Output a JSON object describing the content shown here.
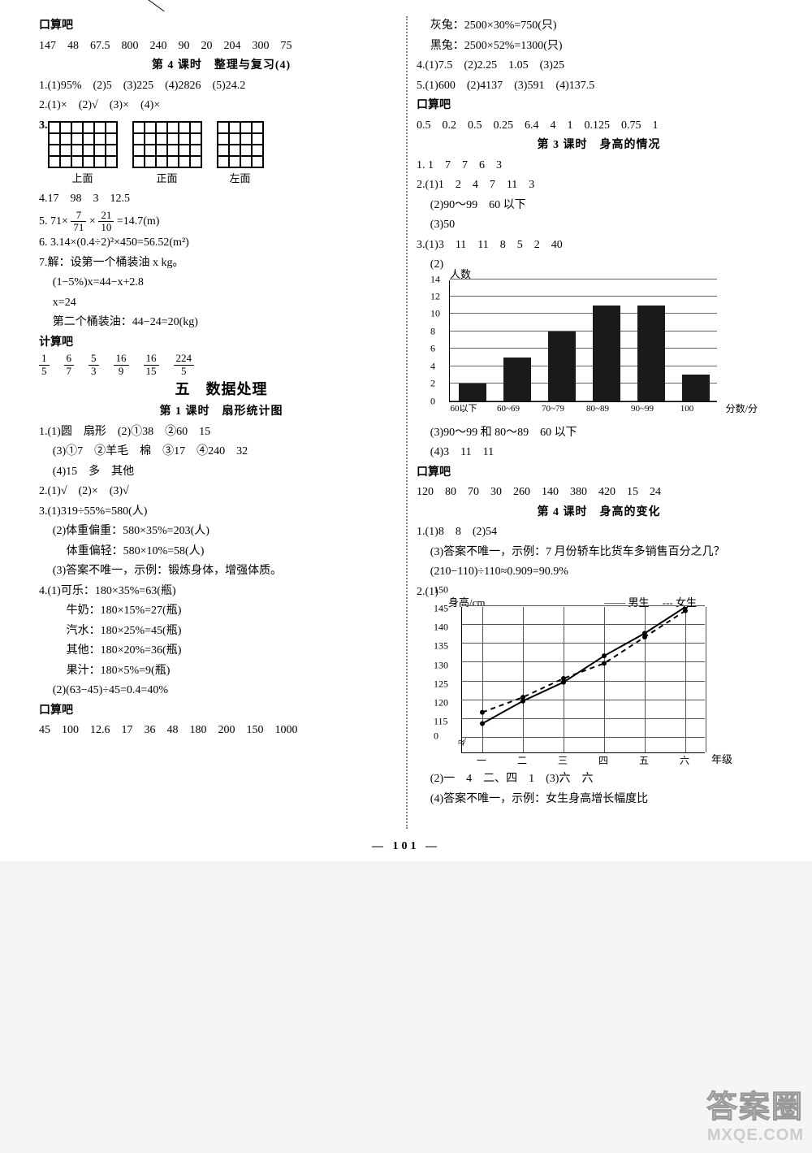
{
  "page_number": "101",
  "left": {
    "slash": true,
    "kousuan1_title": "口算吧",
    "kousuan1_values": "147　48　67.5　800　240　90　20　204　300　75",
    "l4_title": "第 4 课时　整理与复习(4)",
    "q1": "1.(1)95%　(2)5　(3)225　(4)2826　(5)24.2",
    "q2": "2.(1)×　(2)√　(3)×　(4)×",
    "q3_label": "3.",
    "views": [
      {
        "rows": 4,
        "cols": 6,
        "label": "上面"
      },
      {
        "rows": 4,
        "cols": 6,
        "label": "正面"
      },
      {
        "rows": 4,
        "cols": 4,
        "label": "左面"
      }
    ],
    "q4": "4.17　98　3　12.5",
    "q5_pre": "5. 71×",
    "q5_f1_num": "7",
    "q5_f1_den": "71",
    "q5_mid": "×",
    "q5_f2_num": "21",
    "q5_f2_den": "10",
    "q5_post": "=14.7(m)",
    "q6": "6. 3.14×(0.4÷2)²×450=56.52(m²)",
    "q7a": "7.解：设第一个桶装油 x kg。",
    "q7b": "(1−5%)x=44−x+2.8",
    "q7c": "x=24",
    "q7d": "第二个桶装油：44−24=20(kg)",
    "jisuan_title": "计算吧",
    "fractions": [
      {
        "num": "1",
        "den": "5"
      },
      {
        "num": "6",
        "den": "7"
      },
      {
        "num": "5",
        "den": "3"
      },
      {
        "num": "16",
        "den": "9"
      },
      {
        "num": "16",
        "den": "15"
      },
      {
        "num": "224",
        "den": "5"
      }
    ],
    "sec5_title": "五　数据处理",
    "l1_title": "第 1 课时　扇形统计图",
    "s1_1": "1.(1)圆　扇形　(2)①38　②60　15",
    "s1_2": "(3)①7　②羊毛　棉　③17　④240　32",
    "s1_3": "(4)15　多　其他",
    "s2": "2.(1)√　(2)×　(3)√",
    "s3_1": "3.(1)319÷55%=580(人)",
    "s3_2": "(2)体重偏重：580×35%=203(人)",
    "s3_3": "体重偏轻：580×10%=58(人)",
    "s3_4": "(3)答案不唯一，示例：锻炼身体，增强体质。",
    "s4_1": "4.(1)可乐：180×35%=63(瓶)",
    "s4_2": "牛奶：180×15%=27(瓶)",
    "s4_3": "汽水：180×25%=45(瓶)",
    "s4_4": "其他：180×20%=36(瓶)",
    "s4_5": "果汁：180×5%=9(瓶)",
    "s4_6": "(2)(63−45)÷45=0.4=40%",
    "kousuan2_title": "口算吧",
    "kousuan2_values": "45　100　12.6　17　36　48　180　200　150　1000"
  },
  "right": {
    "r0a": "灰兔：2500×30%=750(只)",
    "r0b": "黑兔：2500×52%=1300(只)",
    "r4": "4.(1)7.5　(2)2.25　1.05　(3)25",
    "r5": "5.(1)600　(2)4137　(3)591　(4)137.5",
    "kousuan3_title": "口算吧",
    "kousuan3_values": "0.5　0.2　0.5　0.25　6.4　4　1　0.125　0.75　1",
    "l3_title": "第 3 课时　身高的情况",
    "l3_1": "1. 1　7　7　6　3",
    "l3_2a": "2.(1)1　2　4　7　11　3",
    "l3_2b": "(2)90～99　60 以下",
    "l3_2c": "(3)50",
    "l3_3a": "3.(1)3　11　11　8　5　2　40",
    "l3_3b": "(2)",
    "bar": {
      "ytitle": "人数",
      "xtitle": "分数/分",
      "ymax": 14,
      "ystep": 2,
      "cats": [
        "60以下",
        "60~69",
        "70~79",
        "80~89",
        "90~99",
        "100"
      ],
      "vals": [
        2,
        5,
        8,
        11,
        11,
        3
      ],
      "bar_color": "#1a1a1a",
      "grid_color": "#666666"
    },
    "l3_3c": "(3)90～99 和 80～89　60 以下",
    "l3_3d": "(4)3　11　11",
    "kousuan4_title": "口算吧",
    "kousuan4_values": "120　80　70　30　260　140　380　420　15　24",
    "l4_title": "第 4 课时　身高的变化",
    "l4_1a": "1.(1)8　8　(2)54",
    "l4_1b": "(3)答案不唯一，示例：7 月份轿车比货车多销售百分之几？",
    "l4_1c": "(210−110)÷110≈0.909=90.9%",
    "l4_2a": "2.(1)",
    "line": {
      "ytitle": "身高/cm",
      "legend_m": "—— 男生",
      "legend_f": "--- 女生",
      "xlabels": [
        "一",
        "二",
        "三",
        "四",
        "五",
        "六"
      ],
      "xtitle": "年级",
      "ylabels": [
        "0",
        "115",
        "120",
        "125",
        "130",
        "135",
        "140",
        "145",
        "150"
      ],
      "series_m": [
        119,
        125,
        130,
        137,
        143,
        150
      ],
      "series_f": [
        122,
        126,
        131,
        135,
        142,
        149
      ],
      "color": "#000000"
    },
    "l4_2b": "(2)一　4　二、四　1　(3)六　六",
    "l4_2c": "(4)答案不唯一，示例：女生身高增长幅度比"
  },
  "watermark_cn": "答案圈",
  "watermark_url": "MXQE.COM"
}
